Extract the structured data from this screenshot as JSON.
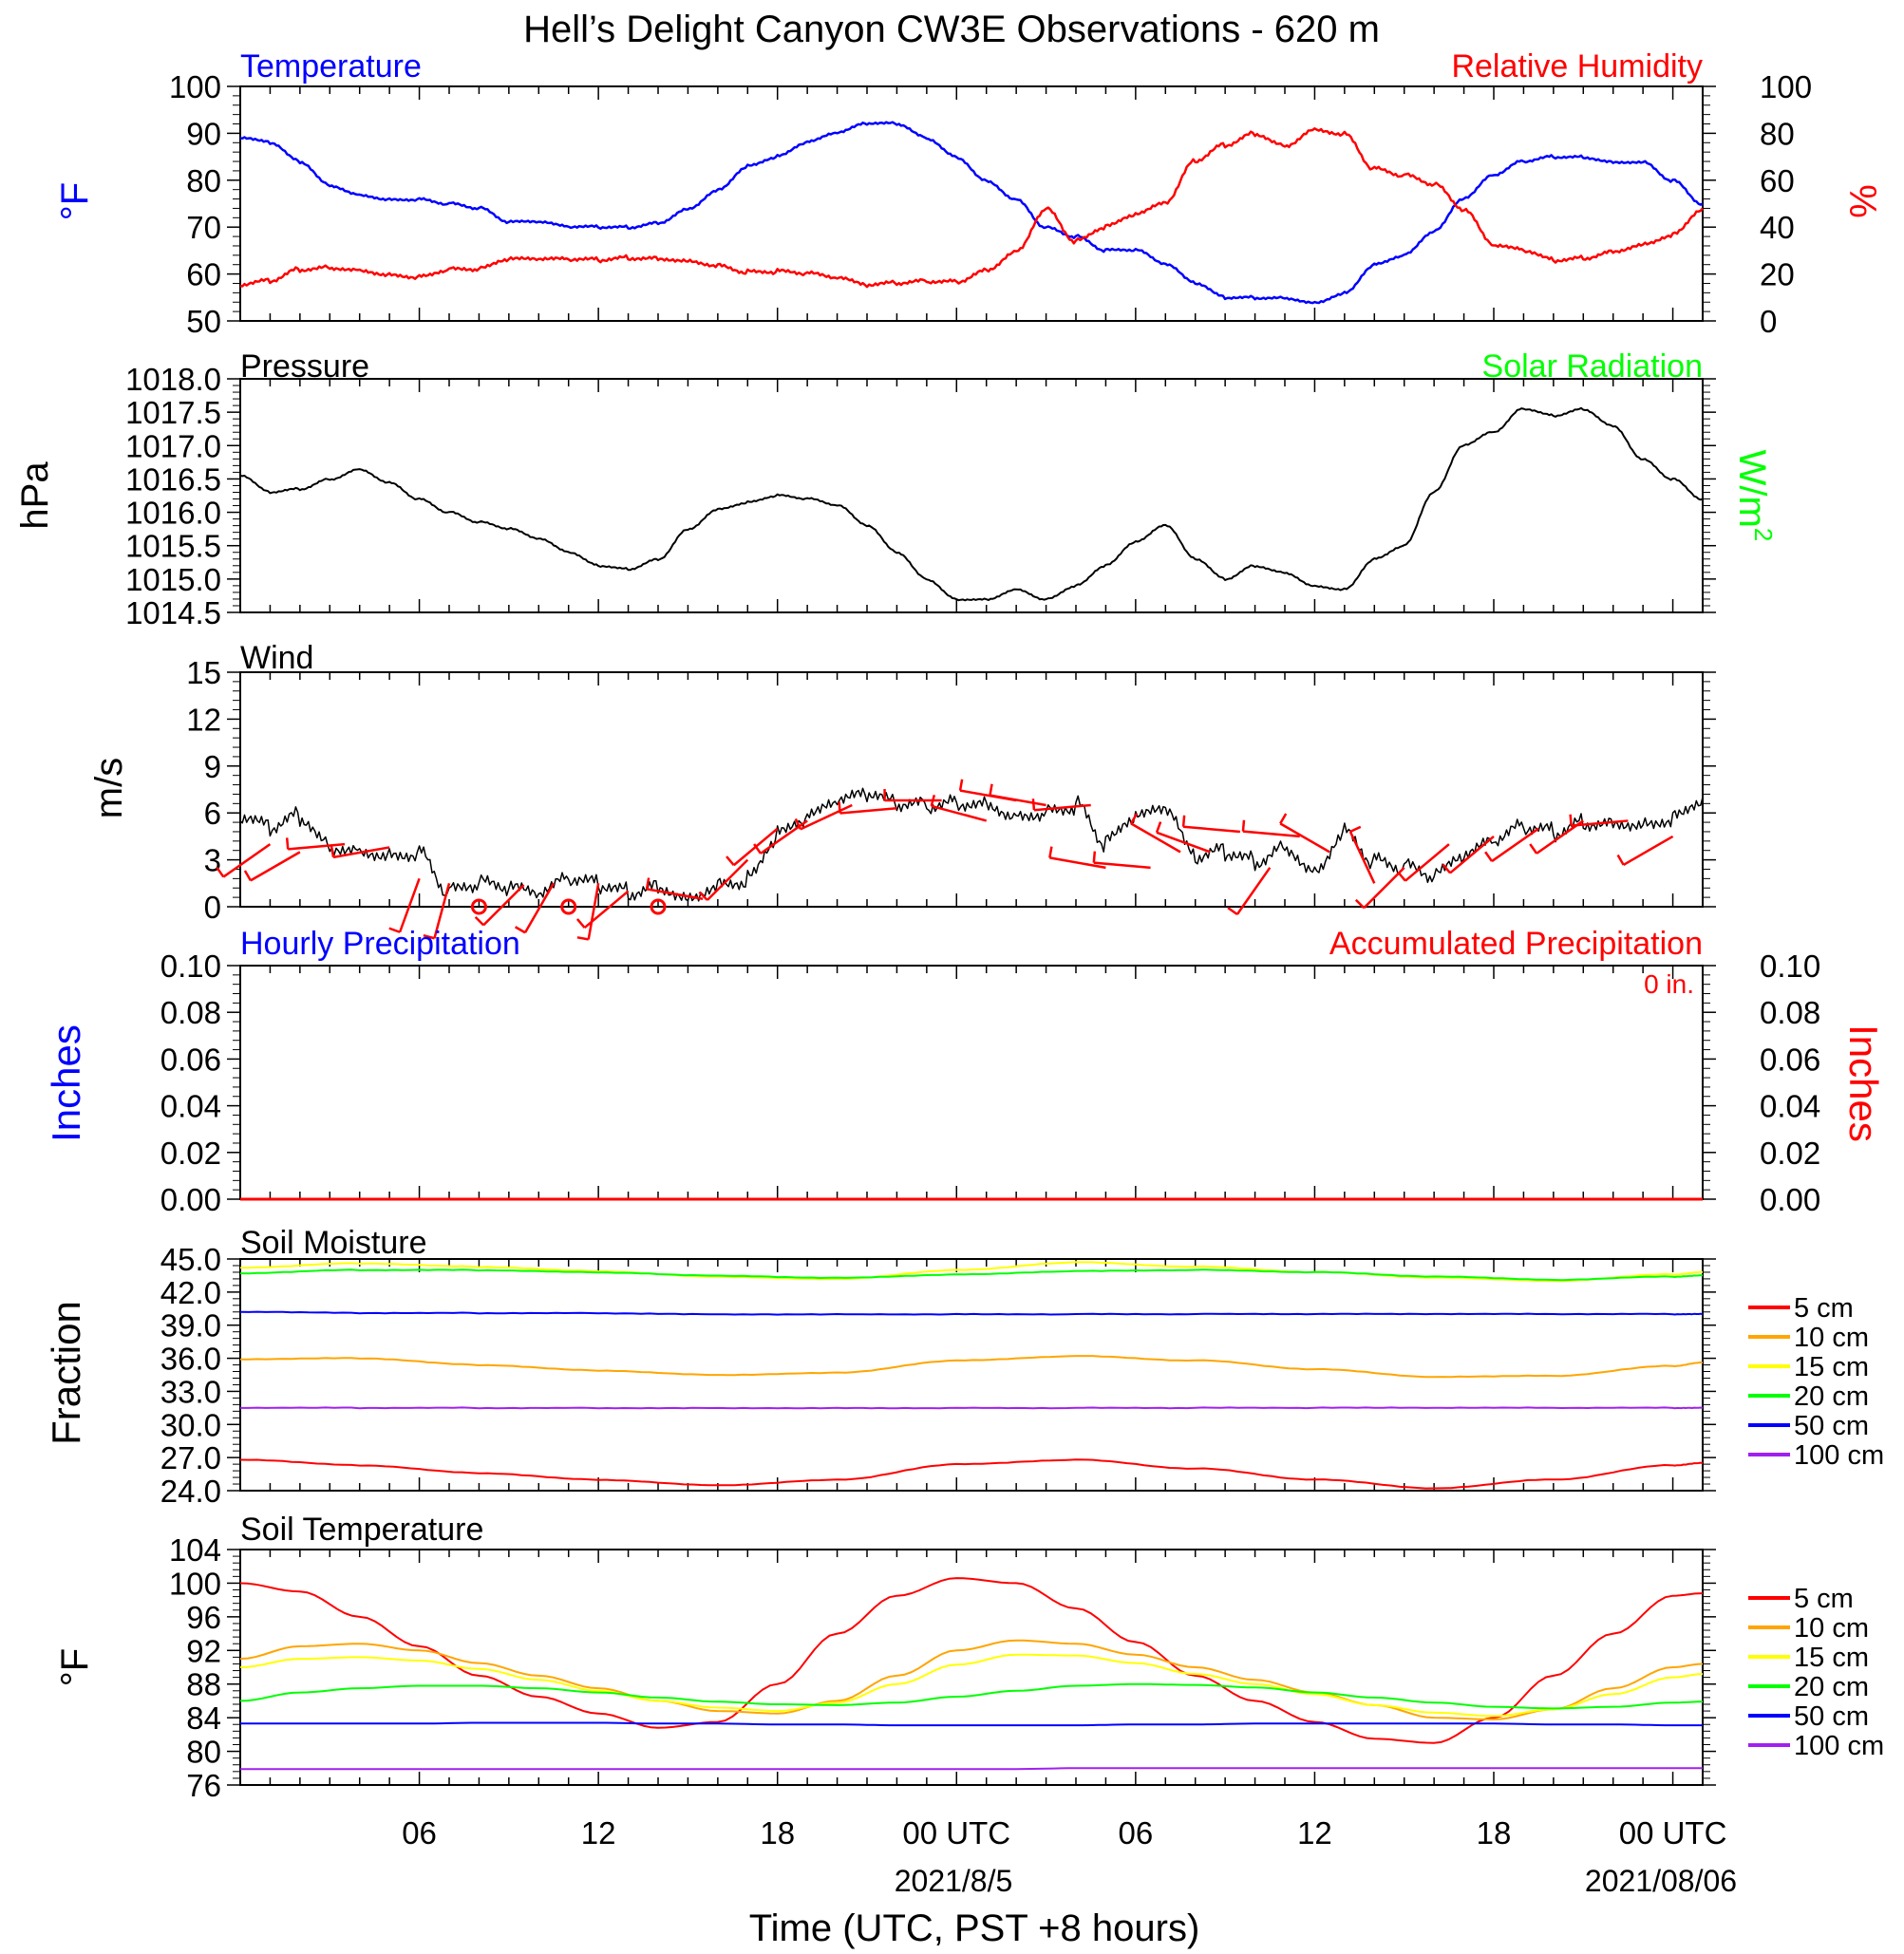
{
  "title": "Hell’s Delight Canyon CW3E Observations - 620 m",
  "xaxis": {
    "label": "Time (UTC, PST +8 hours)",
    "ticks": [
      "06",
      "12",
      "18",
      "00 UTC",
      "06",
      "12",
      "18",
      "00 UTC"
    ],
    "dates": [
      "2021/8/5",
      "2021/08/06"
    ]
  },
  "colors": {
    "blue": "#0000ff",
    "red": "#ff0000",
    "green": "#00ff00",
    "black": "#000000",
    "orange": "#ffa500",
    "yellow": "#ffff00",
    "purple": "#a020f0"
  },
  "chart_data": [
    {
      "type": "line",
      "title_left": "Temperature",
      "title_right": "Relative Humidity",
      "ylabel_left": "°F",
      "ylabel_right": "%",
      "ylim_left": [
        50,
        100
      ],
      "ylim_right": [
        0,
        100
      ],
      "yticks_left": [
        "50",
        "60",
        "70",
        "80",
        "90",
        "100"
      ],
      "yticks_right": [
        "0",
        "20",
        "40",
        "60",
        "80",
        "100"
      ],
      "x_hours": [
        0,
        1,
        2,
        3,
        4,
        5,
        6,
        7,
        8,
        9,
        10,
        11,
        12,
        13,
        14,
        15,
        16,
        17,
        18,
        19,
        20,
        21,
        22,
        23,
        24,
        25,
        26,
        27,
        28,
        29,
        30,
        31,
        32,
        33,
        34,
        35,
        36,
        37,
        38,
        39,
        40,
        41,
        42,
        43,
        44,
        45,
        46,
        47,
        48,
        49
      ],
      "series": [
        {
          "name": "Temperature",
          "axis": "left",
          "color": "#0000ff",
          "values": [
            89,
            88,
            84,
            79,
            77,
            76,
            76,
            75,
            74,
            71,
            71,
            70,
            70,
            70,
            71,
            74,
            78,
            83,
            85,
            88,
            90,
            92,
            92,
            89,
            85,
            80,
            76,
            70,
            68,
            65,
            65,
            62,
            58,
            55,
            55,
            55,
            54,
            56,
            62,
            64,
            69,
            76,
            81,
            84,
            85,
            85,
            84,
            84,
            80,
            75
          ]
        },
        {
          "name": "Relative Humidity",
          "axis": "right",
          "color": "#ff0000",
          "values": [
            15,
            17,
            22,
            23,
            22,
            20,
            19,
            22,
            22,
            26,
            26,
            26,
            26,
            27,
            27,
            26,
            24,
            21,
            21,
            20,
            18,
            15,
            16,
            17,
            17,
            22,
            30,
            48,
            34,
            40,
            45,
            50,
            68,
            75,
            80,
            75,
            82,
            80,
            65,
            62,
            58,
            47,
            32,
            30,
            26,
            27,
            30,
            33,
            37,
            48
          ]
        }
      ]
    },
    {
      "type": "line",
      "title_left": "Pressure",
      "title_right": "Solar Radiation",
      "ylabel_left": "hPa",
      "ylabel_right": "W/m",
      "ylabel_right_sup": "2",
      "ylim": [
        1014.5,
        1018.0
      ],
      "yticks": [
        "1014.5",
        "1015.0",
        "1015.5",
        "1016.0",
        "1016.5",
        "1017.0",
        "1017.5",
        "1018.0"
      ],
      "x_hours": [
        0,
        1,
        2,
        3,
        4,
        5,
        6,
        7,
        8,
        9,
        10,
        11,
        12,
        13,
        14,
        15,
        16,
        17,
        18,
        19,
        20,
        21,
        22,
        23,
        24,
        25,
        26,
        27,
        28,
        29,
        30,
        31,
        32,
        33,
        34,
        35,
        36,
        37,
        38,
        39,
        40,
        41,
        42,
        43,
        44,
        45,
        46,
        47,
        48,
        49
      ],
      "series": [
        {
          "name": "Pressure",
          "color": "#000000",
          "values": [
            1016.55,
            1016.3,
            1016.35,
            1016.5,
            1016.65,
            1016.45,
            1016.2,
            1016.0,
            1015.85,
            1015.75,
            1015.6,
            1015.4,
            1015.2,
            1015.15,
            1015.3,
            1015.75,
            1016.05,
            1016.15,
            1016.25,
            1016.2,
            1016.1,
            1015.8,
            1015.4,
            1015.0,
            1014.7,
            1014.7,
            1014.85,
            1014.7,
            1014.9,
            1015.2,
            1015.55,
            1015.8,
            1015.3,
            1015.0,
            1015.2,
            1015.1,
            1014.9,
            1014.85,
            1015.3,
            1015.5,
            1016.3,
            1017.0,
            1017.2,
            1017.55,
            1017.45,
            1017.55,
            1017.3,
            1016.8,
            1016.5,
            1016.2
          ]
        }
      ]
    },
    {
      "type": "line",
      "title_left": "Wind",
      "ylabel_left": "m/s",
      "ylim": [
        0,
        15
      ],
      "yticks": [
        "0",
        "3",
        "6",
        "9",
        "12",
        "15"
      ],
      "x_hours": [
        0,
        1,
        2,
        3,
        4,
        5,
        6,
        7,
        8,
        9,
        10,
        11,
        12,
        13,
        14,
        15,
        16,
        17,
        18,
        19,
        20,
        21,
        22,
        23,
        24,
        25,
        26,
        27,
        28,
        29,
        30,
        31,
        32,
        33,
        34,
        35,
        36,
        37,
        38,
        39,
        40,
        41,
        42,
        43,
        44,
        45,
        46,
        47,
        48,
        49
      ],
      "series": [
        {
          "name": "Wind",
          "color": "#000000",
          "values": [
            5.5,
            5.0,
            5.8,
            4.0,
            3.8,
            3.5,
            3.6,
            1.0,
            1.4,
            1.0,
            0.6,
            1.6,
            1.4,
            1.0,
            1.5,
            0.8,
            1.6,
            1.8,
            4.5,
            5.5,
            6.5,
            7.0,
            6.5,
            6.5,
            6.8,
            6.8,
            6.0,
            6.2,
            6.5,
            4.0,
            5.5,
            6.0,
            3.0,
            3.5,
            3.0,
            4.0,
            2.5,
            5.0,
            3.0,
            2.5,
            1.8,
            3.0,
            4.0,
            5.0,
            4.8,
            5.5,
            5.6,
            5.5,
            5.8,
            7.0
          ]
        }
      ],
      "barbs": [
        {
          "x": 1,
          "speed": 4.0,
          "dir_deg": 235
        },
        {
          "x": 2,
          "speed": 3.5,
          "dir_deg": 240
        },
        {
          "x": 3.5,
          "speed": 4.0,
          "dir_deg": 265
        },
        {
          "x": 5,
          "speed": 3.8,
          "dir_deg": 260
        },
        {
          "x": 6,
          "speed": 1.8,
          "dir_deg": 200
        },
        {
          "x": 7,
          "speed": 1.5,
          "dir_deg": 195
        },
        {
          "x": 8,
          "speed": 1.2,
          "dir_deg": 0,
          "calm": true
        },
        {
          "x": 9.5,
          "speed": 1.4,
          "dir_deg": 225
        },
        {
          "x": 10.5,
          "speed": 1.5,
          "dir_deg": 210
        },
        {
          "x": 11,
          "speed": 0.2,
          "dir_deg": 0,
          "calm": true
        },
        {
          "x": 12,
          "speed": 1.5,
          "dir_deg": 190
        },
        {
          "x": 13,
          "speed": 1.0,
          "dir_deg": 230
        },
        {
          "x": 14,
          "speed": 0.3,
          "dir_deg": 0,
          "calm": true
        },
        {
          "x": 15.5,
          "speed": 0.5,
          "dir_deg": 280
        },
        {
          "x": 17,
          "speed": 3.0,
          "dir_deg": 225
        },
        {
          "x": 18,
          "speed": 5.0,
          "dir_deg": 230
        },
        {
          "x": 19,
          "speed": 5.5,
          "dir_deg": 235
        },
        {
          "x": 20.5,
          "speed": 6.5,
          "dir_deg": 245
        },
        {
          "x": 22,
          "speed": 6.3,
          "dir_deg": 265
        },
        {
          "x": 23.5,
          "speed": 6.8,
          "dir_deg": 270
        },
        {
          "x": 25,
          "speed": 5.5,
          "dir_deg": 285
        },
        {
          "x": 26,
          "speed": 6.8,
          "dir_deg": 280
        },
        {
          "x": 27,
          "speed": 6.5,
          "dir_deg": 280
        },
        {
          "x": 28.5,
          "speed": 6.5,
          "dir_deg": 265
        },
        {
          "x": 29,
          "speed": 2.5,
          "dir_deg": 280
        },
        {
          "x": 30.5,
          "speed": 2.5,
          "dir_deg": 275
        },
        {
          "x": 31.5,
          "speed": 3.5,
          "dir_deg": 300
        },
        {
          "x": 32.5,
          "speed": 3.5,
          "dir_deg": 290
        },
        {
          "x": 33.5,
          "speed": 4.8,
          "dir_deg": 275
        },
        {
          "x": 34.5,
          "speed": 2.5,
          "dir_deg": 215
        },
        {
          "x": 35.5,
          "speed": 4.5,
          "dir_deg": 275
        },
        {
          "x": 36.5,
          "speed": 3.5,
          "dir_deg": 300
        },
        {
          "x": 38,
          "speed": 1.5,
          "dir_deg": 335
        },
        {
          "x": 39,
          "speed": 2.5,
          "dir_deg": 225
        },
        {
          "x": 40.5,
          "speed": 4.0,
          "dir_deg": 230
        },
        {
          "x": 42,
          "speed": 4.5,
          "dir_deg": 230
        },
        {
          "x": 43.5,
          "speed": 5.0,
          "dir_deg": 235
        },
        {
          "x": 45,
          "speed": 5.5,
          "dir_deg": 235
        },
        {
          "x": 46.5,
          "speed": 5.5,
          "dir_deg": 265
        },
        {
          "x": 48,
          "speed": 4.5,
          "dir_deg": 240
        }
      ]
    },
    {
      "type": "bar",
      "title_left": "Hourly Precipitation",
      "title_right": "Accumulated Precipitation",
      "annotation": "0 in.",
      "ylabel_left": "Inches",
      "ylabel_right": "Inches",
      "ylim": [
        0,
        0.1
      ],
      "yticks": [
        "0.00",
        "0.02",
        "0.04",
        "0.06",
        "0.08",
        "0.10"
      ],
      "series": [
        {
          "name": "Hourly Precipitation",
          "color": "#0000ff",
          "values": [
            0
          ]
        },
        {
          "name": "Accumulated Precipitation",
          "color": "#ff0000",
          "values": [
            0
          ]
        }
      ]
    },
    {
      "type": "line",
      "title_left": "Soil Moisture",
      "ylabel_left": "Fraction",
      "ylim": [
        24.0,
        45.0
      ],
      "yticks": [
        "24.0",
        "27.0",
        "30.0",
        "33.0",
        "36.0",
        "39.0",
        "42.0",
        "45.0"
      ],
      "x_hours": [
        0,
        4,
        8,
        12,
        16,
        20,
        24,
        28,
        32,
        36,
        40,
        44,
        48,
        49
      ],
      "series": [
        {
          "name": "5 cm",
          "color": "#ff0000",
          "values": [
            26.8,
            26.3,
            25.6,
            25.0,
            24.5,
            25.0,
            26.4,
            26.8,
            26.0,
            25.0,
            24.2,
            25.0,
            26.3,
            26.5
          ]
        },
        {
          "name": "10 cm",
          "color": "#ffa500",
          "values": [
            35.9,
            36.0,
            35.4,
            34.9,
            34.5,
            34.7,
            35.8,
            36.2,
            35.8,
            35.0,
            34.3,
            34.4,
            35.3,
            35.6
          ]
        },
        {
          "name": "15 cm",
          "color": "#ffff00",
          "values": [
            44.2,
            44.6,
            44.3,
            43.9,
            43.4,
            43.2,
            44.0,
            44.7,
            44.3,
            43.8,
            43.3,
            43.0,
            43.6,
            43.8
          ]
        },
        {
          "name": "20 cm",
          "color": "#00ff00",
          "values": [
            43.7,
            44.0,
            44.0,
            43.8,
            43.5,
            43.3,
            43.6,
            43.9,
            44.0,
            43.8,
            43.4,
            43.1,
            43.4,
            43.5
          ]
        },
        {
          "name": "50 cm",
          "color": "#0000ff",
          "values": [
            40.2,
            40.1,
            40.1,
            40.1,
            40.0,
            40.0,
            40.0,
            40.0,
            40.0,
            40.0,
            40.0,
            40.0,
            40.0,
            40.0
          ]
        },
        {
          "name": "100 cm",
          "color": "#a020f0",
          "values": [
            31.5,
            31.5,
            31.5,
            31.5,
            31.5,
            31.5,
            31.5,
            31.5,
            31.5,
            31.5,
            31.5,
            31.5,
            31.5,
            31.5
          ]
        }
      ]
    },
    {
      "type": "line",
      "title_left": "Soil Temperature",
      "ylabel_left": "°F",
      "ylim": [
        76,
        104
      ],
      "yticks": [
        "76",
        "80",
        "84",
        "88",
        "92",
        "96",
        "100",
        "104"
      ],
      "x_hours": [
        0,
        2,
        4,
        6,
        8,
        10,
        12,
        14,
        16,
        18,
        20,
        22,
        24,
        26,
        28,
        30,
        32,
        34,
        36,
        38,
        40,
        42,
        44,
        46,
        48,
        49
      ],
      "series": [
        {
          "name": "5 cm",
          "color": "#ff0000",
          "values": [
            100.0,
            99.0,
            96.0,
            92.5,
            89.0,
            86.5,
            84.5,
            82.8,
            83.5,
            88.0,
            94.0,
            98.5,
            100.6,
            100.0,
            97.0,
            93.0,
            89.0,
            86.0,
            83.5,
            81.5,
            81.0,
            84.0,
            89.0,
            94.0,
            98.5,
            98.8
          ]
        },
        {
          "name": "10 cm",
          "color": "#ffa500",
          "values": [
            91.0,
            92.5,
            92.8,
            92.0,
            90.5,
            89.0,
            87.5,
            86.0,
            84.8,
            84.5,
            86.0,
            89.0,
            92.0,
            93.2,
            92.8,
            91.5,
            90.0,
            88.5,
            87.0,
            85.5,
            84.0,
            83.8,
            85.0,
            87.5,
            90.0,
            90.4
          ]
        },
        {
          "name": "15 cm",
          "color": "#ffff00",
          "values": [
            90.0,
            91.0,
            91.2,
            90.8,
            89.8,
            88.5,
            87.2,
            86.0,
            85.2,
            84.8,
            85.8,
            88.0,
            90.3,
            91.5,
            91.4,
            90.5,
            89.2,
            88.0,
            86.8,
            85.5,
            84.6,
            84.2,
            85.0,
            86.8,
            88.8,
            89.2
          ]
        },
        {
          "name": "20 cm",
          "color": "#00ff00",
          "values": [
            86.0,
            87.0,
            87.5,
            87.8,
            87.8,
            87.5,
            87.0,
            86.4,
            85.9,
            85.6,
            85.5,
            85.8,
            86.5,
            87.2,
            87.8,
            88.0,
            87.9,
            87.6,
            87.0,
            86.4,
            85.8,
            85.3,
            85.1,
            85.3,
            85.8,
            85.9
          ]
        },
        {
          "name": "50 cm",
          "color": "#0000ff",
          "values": [
            83.3,
            83.3,
            83.3,
            83.3,
            83.4,
            83.4,
            83.4,
            83.3,
            83.3,
            83.2,
            83.2,
            83.1,
            83.1,
            83.1,
            83.1,
            83.2,
            83.2,
            83.3,
            83.3,
            83.3,
            83.3,
            83.3,
            83.2,
            83.2,
            83.1,
            83.1
          ]
        },
        {
          "name": "100 cm",
          "color": "#a020f0",
          "values": [
            77.9,
            77.9,
            77.9,
            77.9,
            77.9,
            77.9,
            77.9,
            77.9,
            77.9,
            77.9,
            77.9,
            77.9,
            77.9,
            77.9,
            78.0,
            78.0,
            78.0,
            78.0,
            78.0,
            78.0,
            78.0,
            78.0,
            78.0,
            78.0,
            78.0,
            78.0
          ]
        }
      ]
    }
  ]
}
